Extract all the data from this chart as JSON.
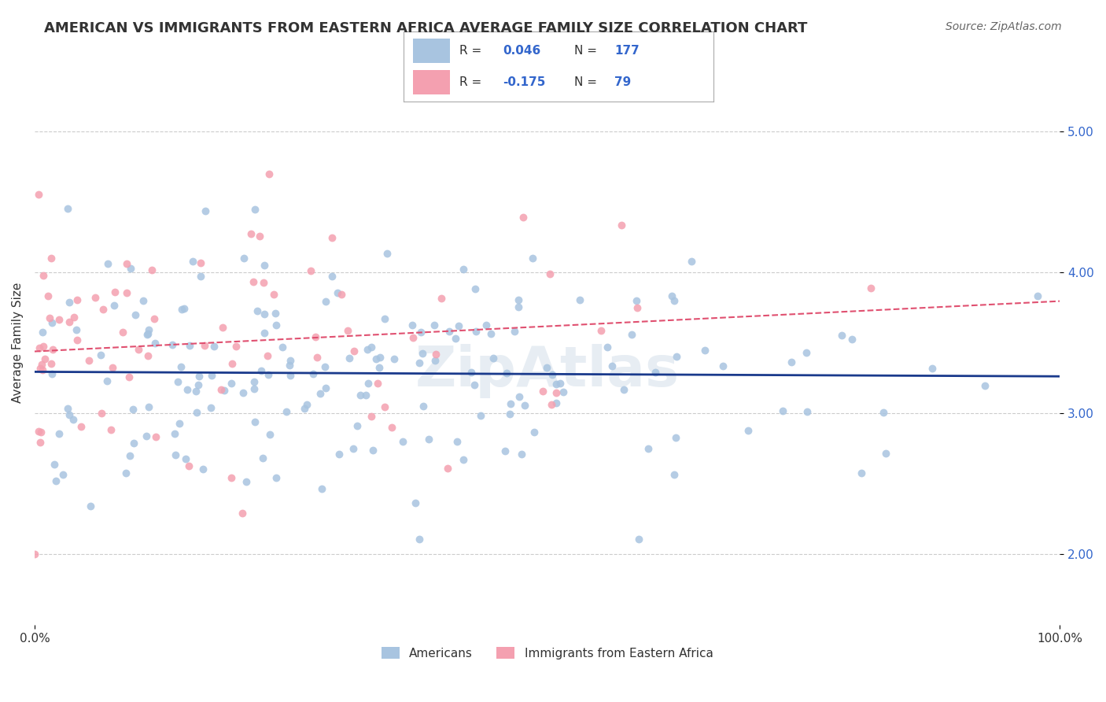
{
  "title": "AMERICAN VS IMMIGRANTS FROM EASTERN AFRICA AVERAGE FAMILY SIZE CORRELATION CHART",
  "source": "Source: ZipAtlas.com",
  "xlabel": "",
  "ylabel": "Average Family Size",
  "watermark": "ZipAtlas",
  "xlim": [
    0,
    100
  ],
  "ylim": [
    1.5,
    5.5
  ],
  "yticks": [
    2.0,
    3.0,
    4.0,
    5.0
  ],
  "xticks": [
    0,
    100
  ],
  "xticklabels": [
    "0.0%",
    "100.0%"
  ],
  "yticklabels": [
    "2.00",
    "3.00",
    "4.00",
    "5.00"
  ],
  "grid_color": "#cccccc",
  "background_color": "#ffffff",
  "americans": {
    "color": "#a8c4e0",
    "line_color": "#1a3a8c",
    "R": 0.046,
    "N": 177,
    "label": "Americans",
    "trend_style": "solid"
  },
  "eastern_africa": {
    "color": "#f4a0b0",
    "line_color": "#e05070",
    "R": -0.175,
    "N": 79,
    "label": "Immigrants from Eastern Africa",
    "trend_style": "dashed"
  },
  "legend_R_color": "#3366cc",
  "title_fontsize": 13,
  "axis_label_fontsize": 11,
  "tick_fontsize": 11,
  "source_fontsize": 10
}
